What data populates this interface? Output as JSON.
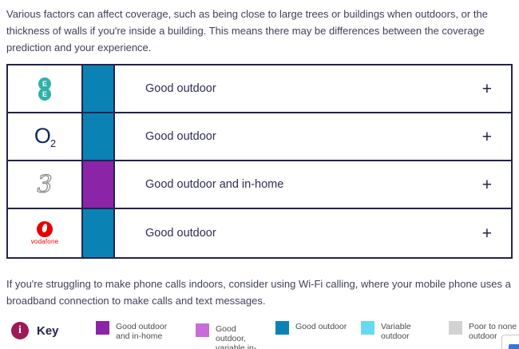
{
  "intro": "Various factors can affect coverage, such as being close to large trees or buildings when outdoors, or the thickness of walls if you're inside a building. This means there may be differences between the coverage prediction and your experience.",
  "table": {
    "rows": [
      {
        "operator": "EE",
        "status": "Good outdoor",
        "status_color": "#0a82b4",
        "expand_label": "+"
      },
      {
        "operator": "O2",
        "status": "Good outdoor",
        "status_color": "#0a82b4",
        "expand_label": "+"
      },
      {
        "operator": "Three",
        "status": "Good outdoor and in-home",
        "status_color": "#8b24a6",
        "expand_label": "+"
      },
      {
        "operator": "Vodafone",
        "status": "Good outdoor",
        "status_color": "#0a82b4",
        "expand_label": "+"
      }
    ]
  },
  "logos": {
    "ee": {
      "letter_top": "E",
      "letter_bottom": "E",
      "color": "#2eb1a7"
    },
    "o2": {
      "main": "O",
      "sub": "2",
      "color": "#11295e"
    },
    "three": {
      "glyph": "3"
    },
    "vodafone": {
      "wordmark": "vodafone",
      "color": "#e60000"
    }
  },
  "wifi_note": "If you're struggling to make phone calls indoors, consider using Wi-Fi calling, where your mobile phone uses a broadband connection to make calls and text messages.",
  "key": {
    "label": "Key",
    "info_glyph": "i",
    "info_color": "#9c1a56",
    "items": [
      {
        "label": "Good outdoor and in-home",
        "color": "#8b24a6"
      },
      {
        "label": "Good outdoor, variable in-home",
        "color": "#c76cd9"
      },
      {
        "label": "Good outdoor",
        "color": "#0a82b4"
      },
      {
        "label": "Variable outdoor",
        "color": "#67daf1"
      },
      {
        "label": "Poor to none outdoor",
        "color": "#d2d2d2"
      }
    ]
  }
}
